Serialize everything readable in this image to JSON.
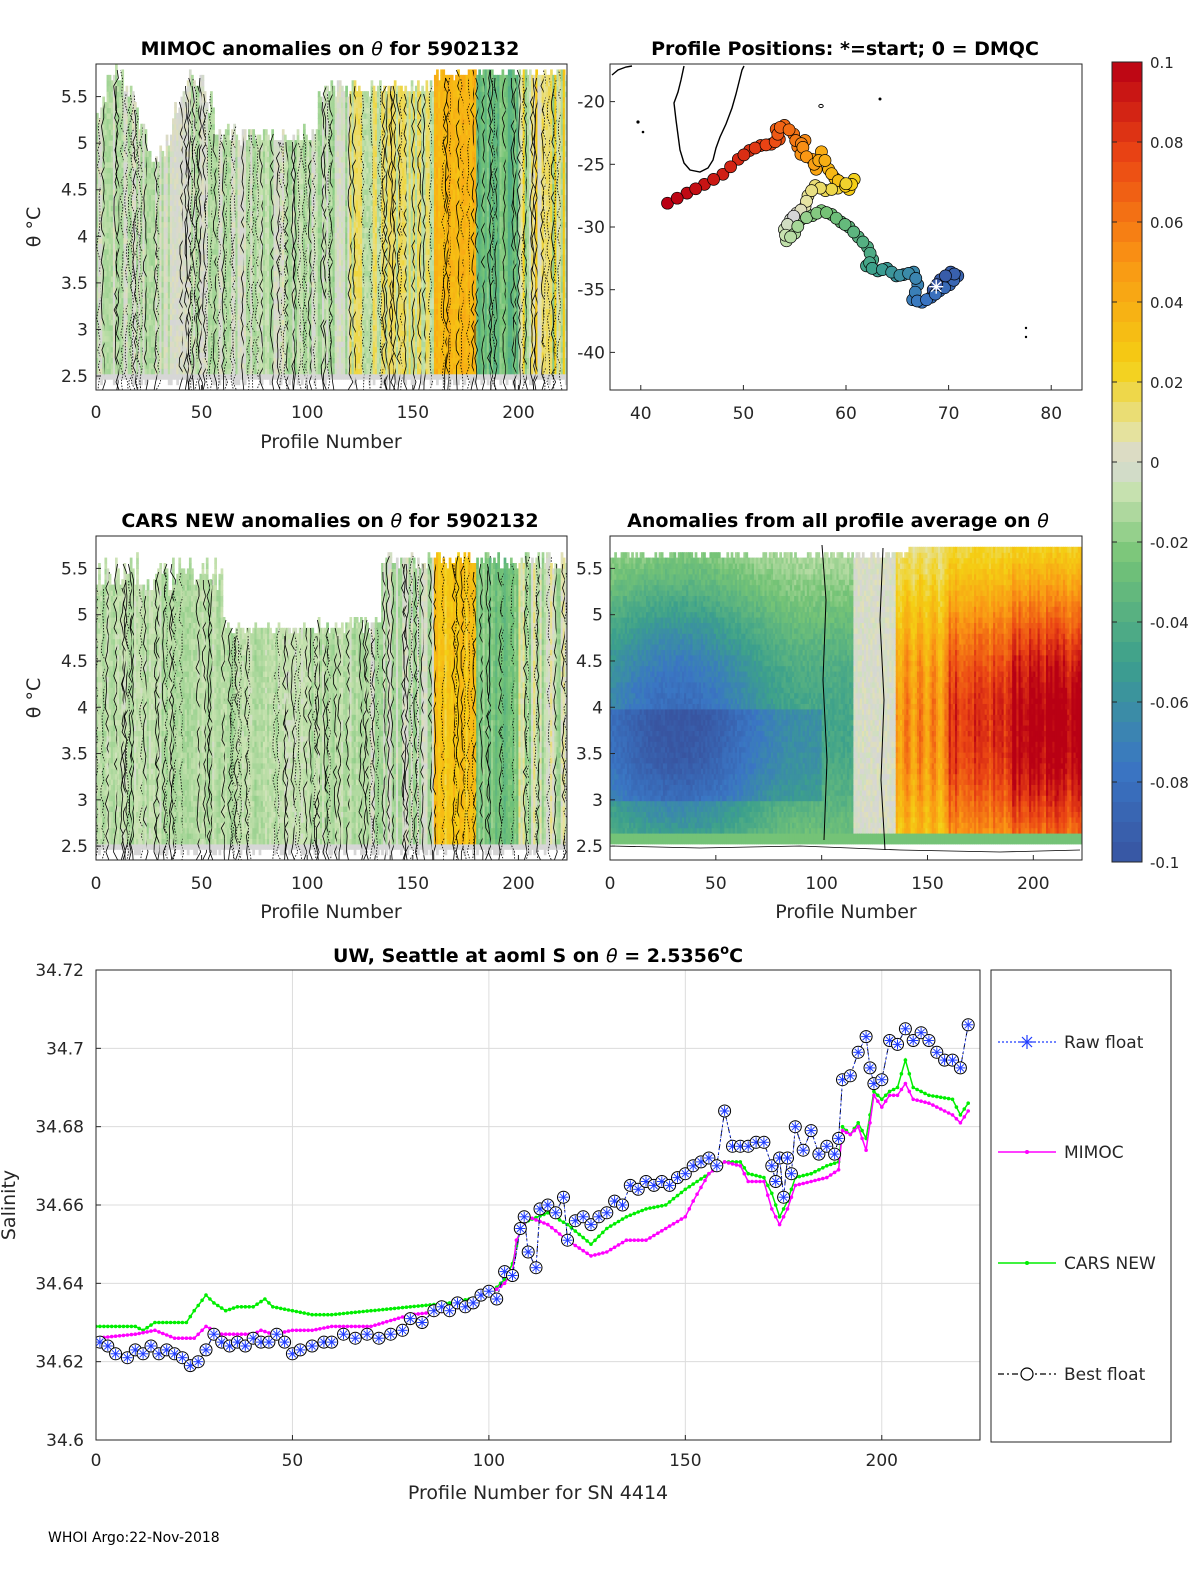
{
  "colors": {
    "raw": "#1f3cff",
    "mimoc": "#ff00ff",
    "cars": "#00ee00",
    "best": "#000000",
    "axis": "#262626",
    "grid": "#dcdcdc"
  },
  "footer": "WHOI Argo:22-Nov-2018",
  "chart_data": [
    {
      "type": "heatmap",
      "name": "mimoc-anomalies",
      "title": "MIMOC anomalies on θ  for 5902132",
      "title_prefix": "MIMOC anomalies on ",
      "title_theta": "θ",
      "title_suffix": "  for 5902132",
      "xlabel": "Profile Number",
      "ylabel": "θ °C",
      "xlim": [
        0,
        223
      ],
      "ylim": [
        2.35,
        5.85
      ],
      "xticks": [
        "0",
        "50",
        "100",
        "150",
        "200"
      ],
      "yticks": [
        "2.5",
        "3",
        "3.5",
        "4",
        "4.5",
        "5",
        "5.5"
      ],
      "field_mode": "mimoc"
    },
    {
      "type": "scatter",
      "name": "profile-positions",
      "title": "Profile Positions: *=start; 0 = DMQC",
      "xlim": [
        37,
        83
      ],
      "ylim": [
        -43,
        -17
      ],
      "xticks": [
        "40",
        "50",
        "60",
        "70",
        "80"
      ],
      "yticks": [
        "-20",
        "-25",
        "-30",
        "-35",
        "-40"
      ],
      "track": [
        [
          42.6,
          -28.1
        ],
        [
          44.5,
          -27.3
        ],
        [
          46.2,
          -26.6
        ],
        [
          48.0,
          -25.8
        ],
        [
          49.5,
          -24.6
        ],
        [
          50.6,
          -23.9
        ],
        [
          51.7,
          -23.5
        ],
        [
          52.7,
          -23.4
        ],
        [
          53.5,
          -23.0
        ],
        [
          53.2,
          -22.2
        ],
        [
          54.0,
          -21.9
        ],
        [
          54.9,
          -22.6
        ],
        [
          55.3,
          -23.6
        ],
        [
          56.0,
          -23.1
        ],
        [
          55.6,
          -24.2
        ],
        [
          56.7,
          -24.6
        ],
        [
          57.1,
          -25.4
        ],
        [
          57.6,
          -24.0
        ],
        [
          58.3,
          -25.4
        ],
        [
          58.9,
          -26.1
        ],
        [
          59.6,
          -26.5
        ],
        [
          60.3,
          -27.0
        ],
        [
          60.8,
          -26.2
        ],
        [
          59.2,
          -26.9
        ],
        [
          58.0,
          -27.1
        ],
        [
          57.0,
          -26.7
        ],
        [
          56.3,
          -27.5
        ],
        [
          56.0,
          -28.4
        ],
        [
          55.2,
          -28.9
        ],
        [
          54.6,
          -29.4
        ],
        [
          54.0,
          -30.2
        ],
        [
          54.2,
          -31.1
        ],
        [
          55.0,
          -30.5
        ],
        [
          55.6,
          -29.4
        ],
        [
          56.7,
          -29.1
        ],
        [
          57.6,
          -28.7
        ],
        [
          58.6,
          -29.0
        ],
        [
          59.5,
          -29.6
        ],
        [
          60.3,
          -30.0
        ],
        [
          61.2,
          -30.8
        ],
        [
          62.1,
          -31.6
        ],
        [
          62.6,
          -32.6
        ],
        [
          62.0,
          -33.1
        ],
        [
          63.1,
          -33.5
        ],
        [
          64.0,
          -33.3
        ],
        [
          64.9,
          -33.9
        ],
        [
          65.6,
          -33.8
        ],
        [
          66.6,
          -33.6
        ],
        [
          67.0,
          -34.6
        ],
        [
          66.5,
          -35.8
        ],
        [
          67.4,
          -36.0
        ],
        [
          68.3,
          -35.6
        ],
        [
          69.1,
          -35.1
        ],
        [
          70.1,
          -34.6
        ],
        [
          70.9,
          -33.9
        ],
        [
          70.2,
          -33.6
        ],
        [
          69.2,
          -34.2
        ],
        [
          68.5,
          -35.0
        ]
      ],
      "color_scale": [
        -0.1,
        0.1
      ]
    },
    {
      "type": "heatmap",
      "name": "cars-anomalies",
      "title": "CARS NEW anomalies on θ for 5902132",
      "title_prefix": "CARS NEW anomalies on ",
      "title_theta": "θ",
      "title_suffix": " for 5902132",
      "xlabel": "Profile Number",
      "ylabel": "θ °C",
      "xlim": [
        0,
        223
      ],
      "ylim": [
        2.35,
        5.85
      ],
      "xticks": [
        "0",
        "50",
        "100",
        "150",
        "200"
      ],
      "yticks": [
        "2.5",
        "3",
        "3.5",
        "4",
        "4.5",
        "5",
        "5.5"
      ],
      "field_mode": "cars"
    },
    {
      "type": "heatmap",
      "name": "profile-average-anomalies",
      "title": "Anomalies from all profile average on θ",
      "title_prefix": "Anomalies from all profile average on ",
      "title_theta": "θ",
      "xlabel": "Profile Number",
      "xlim": [
        0,
        223
      ],
      "ylim": [
        2.35,
        5.85
      ],
      "xticks": [
        "0",
        "50",
        "100",
        "150",
        "200"
      ],
      "yticks": [
        "2.5",
        "3",
        "3.5",
        "4",
        "4.5",
        "5",
        "5.5"
      ],
      "field_mode": "average"
    },
    {
      "type": "colorbar",
      "name": "anomaly-colorbar",
      "range": [
        -0.1,
        0.1
      ],
      "ticks": [
        "0.1",
        "0.08",
        "0.06",
        "0.04",
        "0.02",
        "0",
        "-0.02",
        "-0.04",
        "-0.06",
        "-0.08",
        "-0.1"
      ]
    },
    {
      "type": "line",
      "name": "salinity-series",
      "title_prefix": "UW, Seattle at aoml S on ",
      "title_theta": "θ",
      "title_value": " = 2.5356",
      "title_degree": "o",
      "title_unit": "C",
      "xlabel": "Profile Number for SN 4414",
      "ylabel": "Salinity",
      "xlim": [
        0,
        225
      ],
      "ylim": [
        34.6,
        34.72
      ],
      "xticks": [
        "0",
        "50",
        "100",
        "150",
        "200"
      ],
      "yticks": [
        "34.6",
        "34.62",
        "34.64",
        "34.66",
        "34.68",
        "34.7",
        "34.72"
      ],
      "grid": true,
      "legend_position": "right-outside",
      "legend": [
        "Raw float",
        "MIMOC",
        "CARS NEW",
        "Best float"
      ],
      "raw_knots": [
        [
          1,
          34.625
        ],
        [
          3,
          34.624
        ],
        [
          5,
          34.622
        ],
        [
          8,
          34.621
        ],
        [
          10,
          34.623
        ],
        [
          12,
          34.622
        ],
        [
          14,
          34.624
        ],
        [
          16,
          34.622
        ],
        [
          18,
          34.623
        ],
        [
          20,
          34.622
        ],
        [
          22,
          34.621
        ],
        [
          24,
          34.619
        ],
        [
          26,
          34.62
        ],
        [
          28,
          34.623
        ],
        [
          30,
          34.627
        ],
        [
          32,
          34.625
        ],
        [
          34,
          34.624
        ],
        [
          36,
          34.625
        ],
        [
          38,
          34.624
        ],
        [
          40,
          34.626
        ],
        [
          42,
          34.625
        ],
        [
          44,
          34.625
        ],
        [
          46,
          34.627
        ],
        [
          48,
          34.625
        ],
        [
          50,
          34.622
        ],
        [
          52,
          34.623
        ],
        [
          55,
          34.624
        ],
        [
          58,
          34.625
        ],
        [
          60,
          34.625
        ],
        [
          63,
          34.627
        ],
        [
          66,
          34.626
        ],
        [
          69,
          34.627
        ],
        [
          72,
          34.626
        ],
        [
          75,
          34.627
        ],
        [
          78,
          34.628
        ],
        [
          80,
          34.631
        ],
        [
          83,
          34.63
        ],
        [
          86,
          34.633
        ],
        [
          88,
          34.634
        ],
        [
          90,
          34.633
        ],
        [
          92,
          34.635
        ],
        [
          94,
          34.634
        ],
        [
          96,
          34.635
        ],
        [
          98,
          34.637
        ],
        [
          100,
          34.638
        ],
        [
          102,
          34.636
        ],
        [
          104,
          34.643
        ],
        [
          106,
          34.642
        ],
        [
          108,
          34.654
        ],
        [
          109,
          34.657
        ],
        [
          110,
          34.648
        ],
        [
          112,
          34.644
        ],
        [
          113,
          34.659
        ],
        [
          115,
          34.66
        ],
        [
          117,
          34.658
        ],
        [
          119,
          34.662
        ],
        [
          120,
          34.651
        ],
        [
          122,
          34.656
        ],
        [
          124,
          34.657
        ],
        [
          126,
          34.655
        ],
        [
          128,
          34.657
        ],
        [
          130,
          34.658
        ],
        [
          132,
          34.661
        ],
        [
          134,
          34.66
        ],
        [
          136,
          34.665
        ],
        [
          138,
          34.664
        ],
        [
          140,
          34.666
        ],
        [
          142,
          34.665
        ],
        [
          144,
          34.666
        ],
        [
          146,
          34.665
        ],
        [
          148,
          34.667
        ],
        [
          150,
          34.668
        ],
        [
          152,
          34.67
        ],
        [
          154,
          34.671
        ],
        [
          156,
          34.672
        ],
        [
          158,
          34.67
        ],
        [
          160,
          34.684
        ],
        [
          162,
          34.675
        ],
        [
          164,
          34.675
        ],
        [
          166,
          34.675
        ],
        [
          168,
          34.676
        ],
        [
          170,
          34.676
        ],
        [
          172,
          34.67
        ],
        [
          173,
          34.666
        ],
        [
          174,
          34.672
        ],
        [
          175,
          34.662
        ],
        [
          176,
          34.672
        ],
        [
          177,
          34.668
        ],
        [
          178,
          34.68
        ],
        [
          180,
          34.674
        ],
        [
          182,
          34.679
        ],
        [
          184,
          34.673
        ],
        [
          186,
          34.675
        ],
        [
          188,
          34.673
        ],
        [
          189,
          34.677
        ],
        [
          190,
          34.692
        ],
        [
          192,
          34.693
        ],
        [
          194,
          34.699
        ],
        [
          196,
          34.703
        ],
        [
          197,
          34.695
        ],
        [
          198,
          34.691
        ],
        [
          200,
          34.692
        ],
        [
          202,
          34.702
        ],
        [
          204,
          34.701
        ],
        [
          206,
          34.705
        ],
        [
          208,
          34.702
        ],
        [
          210,
          34.704
        ],
        [
          212,
          34.702
        ],
        [
          214,
          34.699
        ],
        [
          216,
          34.697
        ],
        [
          218,
          34.697
        ],
        [
          220,
          34.695
        ],
        [
          222,
          34.706
        ]
      ],
      "mimoc_knots": [
        [
          0,
          34.626
        ],
        [
          10,
          34.627
        ],
        [
          15,
          34.628
        ],
        [
          20,
          34.626
        ],
        [
          25,
          34.626
        ],
        [
          28,
          34.629
        ],
        [
          32,
          34.627
        ],
        [
          40,
          34.627
        ],
        [
          42,
          34.628
        ],
        [
          45,
          34.627
        ],
        [
          50,
          34.628
        ],
        [
          55,
          34.628
        ],
        [
          60,
          34.629
        ],
        [
          70,
          34.629
        ],
        [
          80,
          34.632
        ],
        [
          90,
          34.633
        ],
        [
          100,
          34.637
        ],
        [
          104,
          34.64
        ],
        [
          106,
          34.643
        ],
        [
          107,
          34.651
        ],
        [
          110,
          34.657
        ],
        [
          115,
          34.655
        ],
        [
          120,
          34.651
        ],
        [
          126,
          34.647
        ],
        [
          130,
          34.648
        ],
        [
          135,
          34.651
        ],
        [
          140,
          34.651
        ],
        [
          145,
          34.654
        ],
        [
          150,
          34.657
        ],
        [
          152,
          34.661
        ],
        [
          156,
          34.668
        ],
        [
          160,
          34.671
        ],
        [
          164,
          34.67
        ],
        [
          166,
          34.666
        ],
        [
          170,
          34.666
        ],
        [
          172,
          34.659
        ],
        [
          174,
          34.655
        ],
        [
          176,
          34.659
        ],
        [
          178,
          34.665
        ],
        [
          182,
          34.666
        ],
        [
          186,
          34.667
        ],
        [
          189,
          34.669
        ],
        [
          190,
          34.679
        ],
        [
          192,
          34.678
        ],
        [
          194,
          34.68
        ],
        [
          196,
          34.674
        ],
        [
          198,
          34.688
        ],
        [
          200,
          34.685
        ],
        [
          202,
          34.688
        ],
        [
          204,
          34.688
        ],
        [
          206,
          34.691
        ],
        [
          208,
          34.687
        ],
        [
          212,
          34.686
        ],
        [
          218,
          34.683
        ],
        [
          220,
          34.681
        ],
        [
          222,
          34.684
        ]
      ],
      "cars_knots": [
        [
          0,
          34.629
        ],
        [
          10,
          34.629
        ],
        [
          12,
          34.628
        ],
        [
          15,
          34.63
        ],
        [
          20,
          34.63
        ],
        [
          23,
          34.63
        ],
        [
          25,
          34.633
        ],
        [
          28,
          34.637
        ],
        [
          30,
          34.635
        ],
        [
          33,
          34.633
        ],
        [
          36,
          34.634
        ],
        [
          40,
          34.634
        ],
        [
          43,
          34.636
        ],
        [
          45,
          34.634
        ],
        [
          50,
          34.633
        ],
        [
          55,
          34.632
        ],
        [
          60,
          34.632
        ],
        [
          70,
          34.633
        ],
        [
          80,
          34.634
        ],
        [
          90,
          34.635
        ],
        [
          100,
          34.637
        ],
        [
          104,
          34.641
        ],
        [
          106,
          34.645
        ],
        [
          108,
          34.654
        ],
        [
          110,
          34.656
        ],
        [
          115,
          34.658
        ],
        [
          120,
          34.655
        ],
        [
          126,
          34.65
        ],
        [
          130,
          34.654
        ],
        [
          135,
          34.657
        ],
        [
          140,
          34.659
        ],
        [
          145,
          34.66
        ],
        [
          150,
          34.664
        ],
        [
          156,
          34.668
        ],
        [
          160,
          34.671
        ],
        [
          164,
          34.671
        ],
        [
          166,
          34.668
        ],
        [
          170,
          34.667
        ],
        [
          172,
          34.663
        ],
        [
          174,
          34.657
        ],
        [
          176,
          34.661
        ],
        [
          178,
          34.667
        ],
        [
          182,
          34.668
        ],
        [
          186,
          34.67
        ],
        [
          189,
          34.671
        ],
        [
          190,
          34.68
        ],
        [
          192,
          34.678
        ],
        [
          194,
          34.681
        ],
        [
          196,
          34.677
        ],
        [
          198,
          34.689
        ],
        [
          200,
          34.687
        ],
        [
          202,
          34.689
        ],
        [
          204,
          34.69
        ],
        [
          206,
          34.697
        ],
        [
          208,
          34.69
        ],
        [
          212,
          34.688
        ],
        [
          218,
          34.687
        ],
        [
          220,
          34.683
        ],
        [
          222,
          34.686
        ]
      ]
    }
  ]
}
